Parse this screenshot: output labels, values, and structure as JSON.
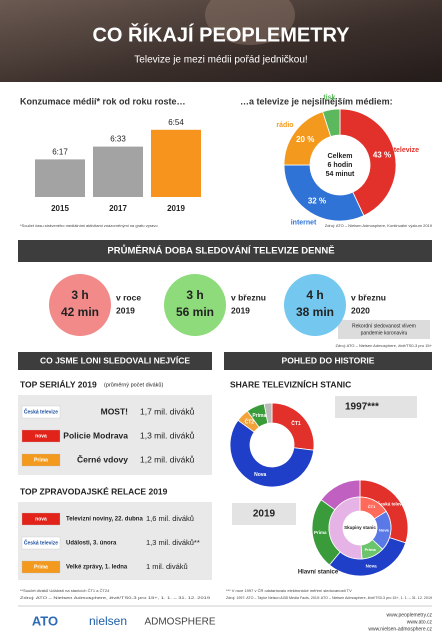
{
  "header": {
    "title": "CO ŘÍKAJÍ PEOPLEMETRY",
    "subtitle": "Televize je mezi médii pořád jedničkou!"
  },
  "chart_data": [
    {
      "type": "bar",
      "title": "Konzumace médií* rok od roku roste…",
      "categories": [
        "2015",
        "2017",
        "2019"
      ],
      "values": [
        377,
        393,
        414
      ],
      "value_labels": [
        "6:17",
        "6:33",
        "6:54"
      ],
      "colors": [
        "#a3a3a3",
        "#a3a3a3",
        "#f7941d"
      ],
      "ylim": [
        330,
        420
      ],
      "footnote": "*Součet času stráveného mediálními aktivitami znázorněnými na grafu vpravo"
    },
    {
      "type": "donut",
      "title": "…a televize je nejsilnějším médiem:",
      "categories": [
        "televize",
        "internet",
        "rádio",
        "tisk"
      ],
      "values": [
        43,
        32,
        20,
        5
      ],
      "value_labels": [
        "43 %",
        "32 %",
        "20 %",
        null
      ],
      "colors": [
        "#e2312b",
        "#2f73d6",
        "#f39a1e",
        "#5cb85c"
      ],
      "center_text": [
        "Celkem",
        "6 hodin",
        "54 minut"
      ],
      "source": "Zdroj: ATO – Nielsen Admosphere, Kontinuální výzkum 2019"
    },
    {
      "type": "donut",
      "title": "1997***",
      "categories": [
        "ČT1",
        "Nova",
        "ČT2",
        "Prima",
        null
      ],
      "values": [
        27,
        58,
        5,
        7,
        3
      ],
      "colors": [
        "#e2312b",
        "#1f3fc9",
        "#f2a33a",
        "#3a9b3a",
        "#bbbbbb"
      ]
    },
    {
      "type": "donut",
      "title": "2019",
      "series": [
        {
          "name": "Skupiny stanic",
          "categories": [
            "Česká televize",
            "Nova",
            "Prima",
            null
          ],
          "values": [
            30,
            31,
            24,
            15
          ],
          "colors": [
            "#e2312b",
            "#1f3fc9",
            "#3a9b3a",
            "#c060c0"
          ]
        },
        {
          "name": "Hlavní stanice",
          "categories": [
            "ČT1",
            "Nova",
            "Prima",
            null
          ],
          "values": [
            16,
            21,
            12,
            51
          ],
          "colors": [
            "#ff6a5a",
            "#5a78e6",
            "#6cc46c",
            "#e6b3e6"
          ]
        }
      ]
    }
  ],
  "daily": {
    "title": "PRŮMĚRNÁ DOBA SLEDOVÁNÍ TELEVIZE DENNĚ",
    "items": [
      {
        "hours": "3 h",
        "minutes": "42 min",
        "period": "v roce",
        "year": "2019",
        "color": "#f28a8a"
      },
      {
        "hours": "3 h",
        "minutes": "56 min",
        "period": "v březnu",
        "year": "2019",
        "color": "#8ddb7a"
      },
      {
        "hours": "4 h",
        "minutes": "38 min",
        "period": "v březnu",
        "year": "2020",
        "color": "#74c7ee"
      }
    ],
    "note": [
      "Rekordní sledovanost vlivem",
      "pandemie koronaviru"
    ],
    "source": "Zdroj: ATO – Nielsen Admosphere, živě/TS0-3 pro 15+"
  },
  "most_watched": {
    "title": "CO JSME LONI SLEDOVALI NEJVÍCE",
    "series_title": "TOP SERIÁLY 2019",
    "series_note": "(průměrný počet diváků)",
    "series_rows": [
      {
        "channel": "Česká televize",
        "logo_bg": "#ffffff",
        "logo_fg": "#1d4fa0",
        "show": "MOST!",
        "viewers": "1,7 mil. diváků"
      },
      {
        "channel": "nova",
        "logo_bg": "#e2231a",
        "logo_fg": "#ffffff",
        "show": "Policie Modrava",
        "viewers": "1,3 mil. diváků"
      },
      {
        "channel": "Prima",
        "logo_bg": "#f39a1e",
        "logo_fg": "#ffffff",
        "show": "Černé vdovy",
        "viewers": "1,2 mil. diváků"
      }
    ],
    "news_title": "TOP ZPRAVODAJSKÉ RELACE 2019",
    "news_rows": [
      {
        "channel": "nova",
        "logo_bg": "#e2231a",
        "logo_fg": "#ffffff",
        "show": "Televizní noviny, 22. dubna",
        "viewers": "1,6 mil. diváků"
      },
      {
        "channel": "Česká televize",
        "logo_bg": "#ffffff",
        "logo_fg": "#1d4fa0",
        "show": "Události, 3. února",
        "viewers": "1,3 mil. diváků**"
      },
      {
        "channel": "Prima",
        "logo_bg": "#f39a1e",
        "logo_fg": "#ffffff",
        "show": "Velké zprávy, 1. ledna",
        "viewers": "1 mil. diváků"
      }
    ]
  },
  "history": {
    "title": "POHLED DO HISTORIE",
    "subtitle": "SHARE TELEVIZNÍCH STANIC"
  },
  "footnotes": {
    "left": [
      "**Součet diváků Událostí na stanicích ČT1 a ČT24",
      "Zdroj: ATO – Nielsen Admosphere, živě/TS0-3 pro 15+, 1. 1. – 31. 12. 2019"
    ],
    "right": [
      "*** V roce 1997 v ČR odstartovalo elektronické měření sledovanosti TV",
      "Zdroj: 1997: ATO – Taylor Nelson AGB Media Facts, 2019: ATO – Nielsen Admosphere, živě/TS0-3 pro 15+, 1. 1. – 31. 12. 2019"
    ]
  },
  "footer": {
    "logos": [
      "ATO",
      "nielsen",
      "ADMOSPHERE"
    ],
    "urls": [
      "www.peoplemetry.cz",
      "www.ato.cz",
      "www.nielsen-admosphere.cz"
    ]
  }
}
